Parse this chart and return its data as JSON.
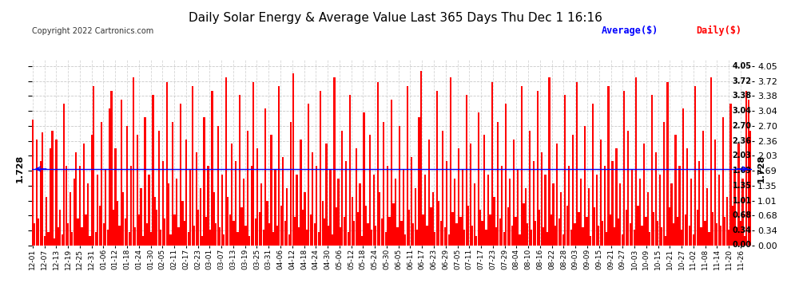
{
  "title": "Daily Solar Energy & Average Value Last 365 Days Thu Dec 1 16:16",
  "copyright": "Copyright 2022 Cartronics.com",
  "average_value": 1.728,
  "average_label": "1.728",
  "bar_color": "#ff0000",
  "avg_line_color": "#0000ff",
  "avg_text_color": "#0000ff",
  "daily_text_color": "#ff0000",
  "legend_avg": "Average($)",
  "legend_daily": "Daily($)",
  "yticks": [
    0.0,
    0.34,
    0.68,
    1.01,
    1.35,
    1.69,
    2.03,
    2.36,
    2.7,
    3.04,
    3.38,
    3.72,
    4.05
  ],
  "ylim": [
    0,
    4.2
  ],
  "background_color": "#ffffff",
  "grid_color": "#bbbbbb",
  "x_labels": [
    "12-01",
    "12-07",
    "12-13",
    "12-19",
    "12-25",
    "12-31",
    "01-06",
    "01-12",
    "01-18",
    "01-24",
    "01-30",
    "02-05",
    "02-11",
    "02-17",
    "02-23",
    "03-01",
    "03-07",
    "03-13",
    "03-19",
    "03-25",
    "03-31",
    "04-06",
    "04-12",
    "04-18",
    "04-24",
    "04-30",
    "05-06",
    "05-12",
    "05-18",
    "05-24",
    "05-30",
    "06-05",
    "06-11",
    "06-17",
    "06-23",
    "06-29",
    "07-05",
    "07-11",
    "07-17",
    "07-23",
    "07-29",
    "08-04",
    "08-10",
    "08-16",
    "08-22",
    "08-28",
    "09-03",
    "09-09",
    "09-15",
    "09-21",
    "09-27",
    "10-03",
    "10-09",
    "10-15",
    "10-21",
    "10-27",
    "11-02",
    "11-08",
    "11-14",
    "11-20",
    "11-26"
  ],
  "values": [
    2.85,
    0.5,
    2.4,
    0.6,
    1.9,
    2.55,
    0.2,
    1.1,
    0.3,
    2.2,
    2.6,
    0.15,
    2.4,
    0.4,
    0.8,
    0.25,
    3.2,
    1.8,
    0.5,
    1.2,
    0.3,
    1.5,
    2.1,
    0.6,
    1.8,
    0.4,
    2.3,
    0.7,
    1.4,
    0.2,
    2.5,
    3.6,
    0.3,
    1.6,
    0.9,
    2.8,
    0.5,
    1.7,
    0.35,
    3.1,
    3.5,
    0.8,
    2.2,
    1.0,
    0.45,
    3.3,
    1.2,
    0.6,
    2.7,
    0.3,
    1.8,
    3.8,
    0.4,
    2.5,
    0.7,
    1.3,
    0.2,
    2.9,
    0.5,
    1.6,
    0.3,
    3.4,
    1.1,
    0.8,
    2.6,
    0.35,
    1.9,
    0.6,
    3.7,
    1.4,
    0.25,
    2.8,
    0.7,
    1.5,
    0.4,
    3.2,
    1.0,
    0.55,
    2.4,
    0.3,
    1.7,
    3.6,
    0.45,
    2.1,
    0.8,
    1.3,
    0.2,
    2.9,
    0.65,
    1.8,
    0.35,
    3.5,
    1.2,
    0.5,
    2.7,
    0.4,
    1.6,
    0.25,
    3.8,
    1.1,
    0.7,
    2.3,
    0.55,
    1.9,
    0.3,
    3.4,
    0.85,
    1.5,
    0.45,
    2.6,
    0.2,
    1.8,
    3.7,
    0.6,
    2.2,
    0.75,
    1.4,
    0.35,
    3.1,
    1.0,
    0.5,
    2.5,
    0.3,
    1.7,
    0.45,
    3.6,
    0.9,
    2.0,
    0.55,
    1.3,
    0.25,
    2.8,
    3.9,
    0.65,
    1.6,
    0.4,
    2.4,
    0.8,
    1.2,
    0.35,
    3.2,
    0.7,
    2.1,
    0.5,
    1.8,
    0.3,
    3.5,
    1.0,
    0.6,
    2.3,
    0.45,
    1.7,
    0.25,
    3.8,
    0.85,
    1.5,
    0.4,
    2.6,
    0.65,
    1.9,
    0.3,
    3.4,
    1.1,
    0.55,
    2.2,
    0.75,
    1.4,
    0.2,
    3.0,
    0.9,
    0.5,
    2.5,
    0.35,
    1.6,
    0.45,
    3.7,
    1.2,
    0.6,
    2.8,
    0.3,
    1.8,
    0.65,
    3.3,
    0.95,
    1.5,
    0.4,
    2.7,
    0.55,
    1.7,
    0.25,
    3.6,
    0.8,
    2.0,
    0.5,
    1.3,
    0.35,
    2.9,
    3.95,
    0.7,
    1.6,
    0.45,
    2.4,
    0.85,
    1.2,
    0.3,
    3.5,
    1.0,
    0.55,
    2.6,
    0.4,
    1.9,
    0.25,
    3.8,
    0.75,
    1.5,
    0.5,
    2.2,
    0.65,
    1.7,
    0.35,
    3.4,
    0.9,
    2.3,
    0.45,
    1.4,
    0.2,
    3.0,
    0.8,
    0.55,
    2.5,
    0.35,
    1.6,
    0.7,
    3.7,
    1.1,
    0.4,
    2.8,
    0.6,
    1.8,
    0.3,
    3.2,
    0.85,
    1.5,
    0.45,
    2.4,
    0.65,
    1.7,
    0.25,
    3.6,
    0.95,
    1.3,
    0.5,
    2.6,
    0.35,
    1.9,
    0.55,
    3.5,
    0.8,
    2.1,
    0.4,
    1.6,
    0.3,
    3.8,
    0.7,
    1.4,
    0.45,
    2.3,
    0.6,
    1.2,
    0.25,
    3.4,
    0.9,
    1.8,
    0.35,
    2.5,
    0.5,
    3.7,
    0.75,
    1.5,
    0.4,
    2.7,
    0.65,
    1.3,
    0.2,
    3.2,
    0.85,
    1.6,
    0.45,
    2.4,
    0.55,
    1.8,
    0.3,
    3.6,
    0.7,
    1.9,
    0.4,
    2.2,
    0.6,
    1.4,
    0.25,
    3.5,
    0.8,
    2.6,
    0.5,
    1.7,
    0.35,
    3.8,
    0.9,
    1.5,
    0.45,
    2.3,
    0.65,
    1.2,
    0.3,
    3.4,
    0.75,
    2.1,
    0.55,
    1.6,
    0.4,
    2.8,
    0.2,
    3.7,
    0.85,
    1.4,
    0.5,
    2.5,
    0.65,
    1.8,
    0.35,
    3.1,
    0.7,
    2.2,
    0.45,
    1.5,
    0.25,
    3.6,
    0.8,
    1.9,
    0.4,
    2.6,
    0.55,
    1.3,
    0.3,
    3.8,
    0.75,
    2.4,
    0.5,
    1.6,
    0.45,
    2.9,
    0.65,
    1.1,
    0.35,
    3.2,
    0.9,
    1.7,
    0.4,
    2.3,
    0.55,
    1.5,
    0.2,
    3.5,
    3.3,
    2.6
  ]
}
